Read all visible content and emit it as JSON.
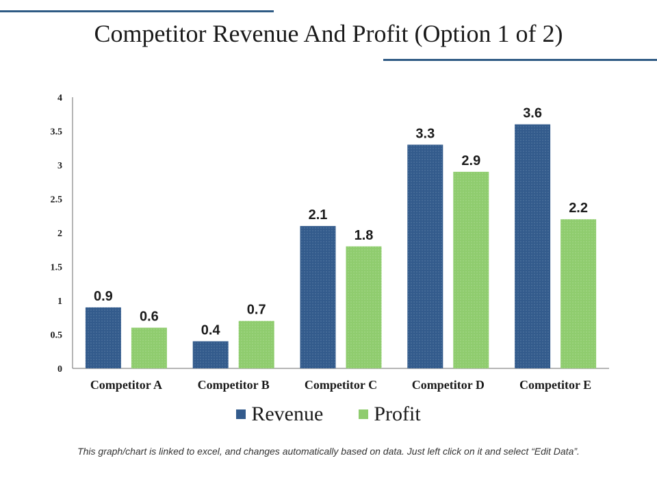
{
  "page": {
    "title": "Competitor Revenue And Profit (Option 1 of 2)",
    "footer_note": "This graph/chart is linked to excel, and changes automatically based on data. Just left click on it and select “Edit Data”."
  },
  "colors": {
    "accent_rule": "#2e5a84",
    "revenue": "#335b8c",
    "profit": "#8fcc6e"
  },
  "chart_data": {
    "type": "bar",
    "title": "",
    "xlabel": "",
    "ylabel": "",
    "ylim": [
      0,
      4
    ],
    "yticks": [
      "0",
      "0.5",
      "1",
      "1.5",
      "2",
      "2.5",
      "3",
      "3.5",
      "4"
    ],
    "grid": false,
    "legend_position": "bottom",
    "categories": [
      "Competitor A",
      "Competitor B",
      "Competitor C",
      "Competitor D",
      "Competitor E"
    ],
    "series": [
      {
        "name": "Revenue",
        "values": [
          0.9,
          0.4,
          2.1,
          3.3,
          3.6
        ],
        "labels": [
          "0.9",
          "0.4",
          "2.1",
          "3.3",
          "3.6"
        ]
      },
      {
        "name": "Profit",
        "values": [
          0.6,
          0.7,
          1.8,
          2.9,
          2.2
        ],
        "labels": [
          "0.6",
          "0.7",
          "1.8",
          "2.9",
          "2.2"
        ]
      }
    ]
  }
}
